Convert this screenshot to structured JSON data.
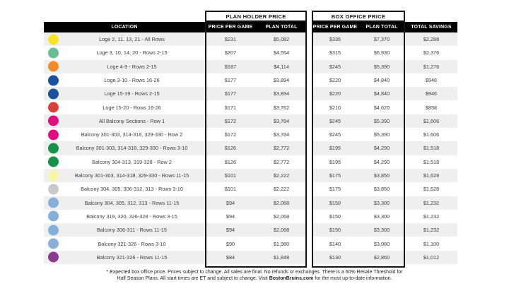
{
  "colors": {
    "header_bg": "#000000",
    "header_text": "#ffffff",
    "row_alt_bg": "#efefef",
    "border": "#151515"
  },
  "header": {
    "group1_title": "PLAN HOLDER PRICE",
    "group2_title": "BOX OFFICE PRICE",
    "columns": {
      "location": "LOCATION",
      "price_per_game": "PRICE PER GAME",
      "plan_total": "PLAN TOTAL",
      "total_savings": "TOTAL SAVINGS"
    }
  },
  "rows": [
    {
      "color": "#F6E42C",
      "location": "Loge 2, 11, 13, 21 - All Rows",
      "ph_game": "$231",
      "ph_total": "$5,082",
      "bo_game": "$335",
      "bo_total": "$7,370",
      "savings": "$2,288"
    },
    {
      "color": "#69BD96",
      "location": "Loge 3, 10, 14, 20 - Rows 2-15",
      "ph_game": "$207",
      "ph_total": "$4,554",
      "bo_game": "$315",
      "bo_total": "$6,930",
      "savings": "$2,376"
    },
    {
      "color": "#F18A28",
      "location": "Loge 4-9 - Rows 2-15",
      "ph_game": "$187",
      "ph_total": "$4,114",
      "bo_game": "$245",
      "bo_total": "$5,390",
      "savings": "$1,276"
    },
    {
      "color": "#1C4F9C",
      "location": "Loge 3-10 - Rows 16-26",
      "ph_game": "$177",
      "ph_total": "$3,894",
      "bo_game": "$220",
      "bo_total": "$4,840",
      "savings": "$946"
    },
    {
      "color": "#1C4F9C",
      "location": "Loge 15-19 - Rows 2-15",
      "ph_game": "$177",
      "ph_total": "$3,894",
      "bo_game": "$220",
      "bo_total": "$4,840",
      "savings": "$946"
    },
    {
      "color": "#D6413A",
      "location": "Loge 15-20 - Rows 16-26",
      "ph_game": "$171",
      "ph_total": "$3,762",
      "bo_game": "$210",
      "bo_total": "$4,620",
      "savings": "$858"
    },
    {
      "color": "#DE107F",
      "location": "All Balcony Sections - Row 1",
      "ph_game": "$172",
      "ph_total": "$3,784",
      "bo_game": "$245",
      "bo_total": "$5,390",
      "savings": "$1,606"
    },
    {
      "color": "#DE107F",
      "location": "Balcony 301-303, 314-318, 329-330 - Row 2",
      "ph_game": "$172",
      "ph_total": "$3,784",
      "bo_game": "$245",
      "bo_total": "$5,390",
      "savings": "$1,606"
    },
    {
      "color": "#16914A",
      "location": "Balcony 301-303, 314-318, 329-330 - Rows 3-10",
      "ph_game": "$126",
      "ph_total": "$2,772",
      "bo_game": "$195",
      "bo_total": "$4,290",
      "savings": "$1,518"
    },
    {
      "color": "#16914A",
      "location": "Balcony 304-313, 319-328 - Row 2",
      "ph_game": "$126",
      "ph_total": "$2,772",
      "bo_game": "$195",
      "bo_total": "$4,290",
      "savings": "$1,518"
    },
    {
      "color": "#F7F6A6",
      "location": "Balcony 301-303, 314-318, 329-330 - Rows 11-15",
      "ph_game": "$101",
      "ph_total": "$2,222",
      "bo_game": "$175",
      "bo_total": "$3,850",
      "savings": "$1,628"
    },
    {
      "color": "#C9C9C9",
      "location": "Balcony 304, 305, 306-312, 313 - Rows 3-10",
      "ph_game": "$101",
      "ph_total": "$2,222",
      "bo_game": "$175",
      "bo_total": "$3,850",
      "savings": "$1,628"
    },
    {
      "color": "#87AFD9",
      "location": "Balcony 304, 305, 312, 313 - Rows 11-15",
      "ph_game": "$94",
      "ph_total": "$2,068",
      "bo_game": "$150",
      "bo_total": "$3,300",
      "savings": "$1,232"
    },
    {
      "color": "#87AFD9",
      "location": "Balcony 319, 320, 326-328 - Rows 3-15",
      "ph_game": "$94",
      "ph_total": "$2,068",
      "bo_game": "$150",
      "bo_total": "$3,300",
      "savings": "$1,232"
    },
    {
      "color": "#87AFD9",
      "location": "Balcony 306-311 - Rows 11-15",
      "ph_game": "$94",
      "ph_total": "$2,068",
      "bo_game": "$150",
      "bo_total": "$3,300",
      "savings": "$1,232"
    },
    {
      "color": "#87AFD9",
      "location": "Balcony 321-326 - Rows 3-10",
      "ph_game": "$90",
      "ph_total": "$1,980",
      "bo_game": "$140",
      "bo_total": "$3,080",
      "savings": "$1,100"
    },
    {
      "color": "#8C3C8E",
      "location": "Balcony 321-326 - Rows 11-15",
      "ph_game": "$84",
      "ph_total": "$1,848",
      "bo_game": "$130",
      "bo_total": "$2,860",
      "savings": "$1,012"
    }
  ],
  "footer": {
    "line1": "* Expected box office price. Prices subject to change. All sales are final. No refunds or exchanges. There is a 60% Resale Threshold for",
    "line2_pre": "Half Season Plans. All start times are ET and subject to change. Visit ",
    "line2_link": "BostonBruins.com",
    "line2_post": " for the most up-to-date information."
  }
}
